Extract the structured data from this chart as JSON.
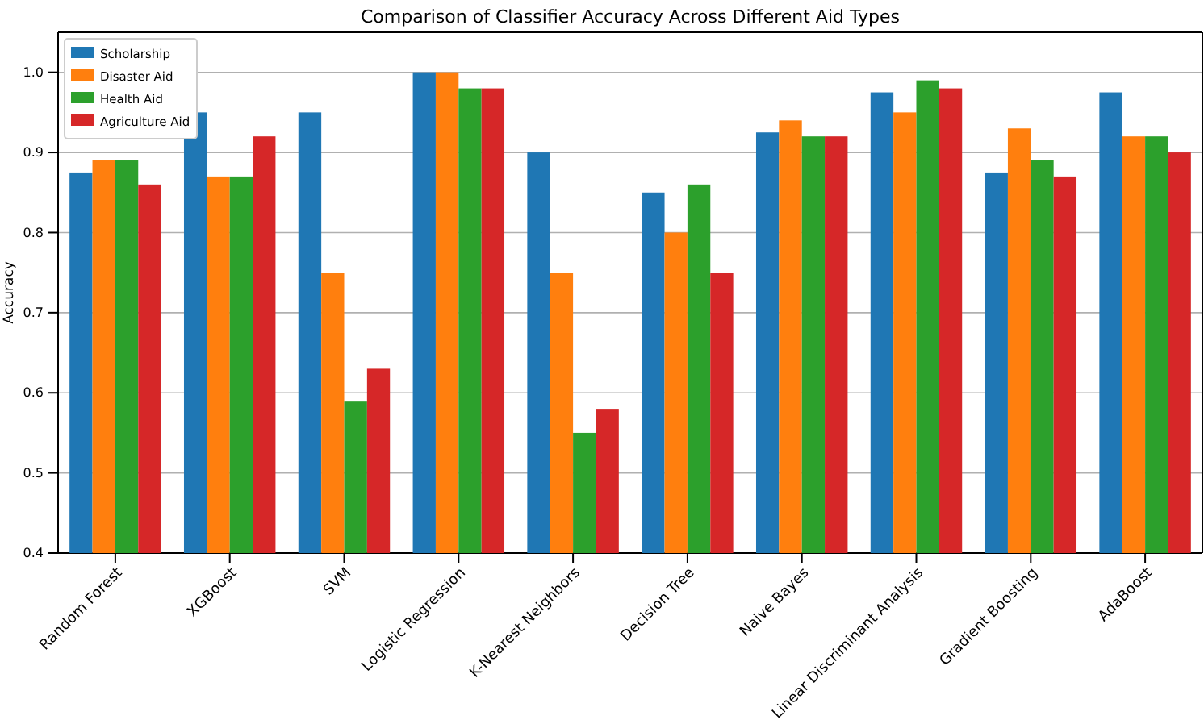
{
  "chart_data": {
    "type": "bar",
    "title": "Comparison of Classifier Accuracy Across Different Aid Types",
    "ylabel": "Accuracy",
    "categories": [
      "Random Forest",
      "XGBoost",
      "SVM",
      "Logistic Regression",
      "K-Nearest Neighbors",
      "Decision Tree",
      "Naive Bayes",
      "Linear Discriminant Analysis",
      "Gradient Boosting",
      "AdaBoost"
    ],
    "series": [
      {
        "name": "Scholarship",
        "color": "#1f77b4",
        "values": [
          0.875,
          0.95,
          0.95,
          1.0,
          0.9,
          0.85,
          0.925,
          0.975,
          0.875,
          0.975
        ]
      },
      {
        "name": "Disaster Aid",
        "color": "#ff7f0e",
        "values": [
          0.89,
          0.87,
          0.75,
          1.0,
          0.75,
          0.8,
          0.94,
          0.95,
          0.93,
          0.92
        ]
      },
      {
        "name": "Health Aid",
        "color": "#2ca02c",
        "values": [
          0.89,
          0.87,
          0.59,
          0.98,
          0.55,
          0.86,
          0.92,
          0.99,
          0.89,
          0.92
        ]
      },
      {
        "name": "Agriculture Aid",
        "color": "#d62728",
        "values": [
          0.86,
          0.92,
          0.63,
          0.98,
          0.58,
          0.75,
          0.92,
          0.98,
          0.87,
          0.9
        ]
      }
    ],
    "ylim": [
      0.4,
      1.05
    ],
    "yticks": [
      {
        "value": 0.4,
        "label": "0.4"
      },
      {
        "value": 0.5,
        "label": "0.5"
      },
      {
        "value": 0.6,
        "label": "0.6"
      },
      {
        "value": 0.7,
        "label": "0.7"
      },
      {
        "value": 0.8,
        "label": "0.8"
      },
      {
        "value": 0.9,
        "label": "0.9"
      },
      {
        "value": 1.0,
        "label": "1.0"
      }
    ],
    "grid": "y",
    "legend": "top left"
  }
}
